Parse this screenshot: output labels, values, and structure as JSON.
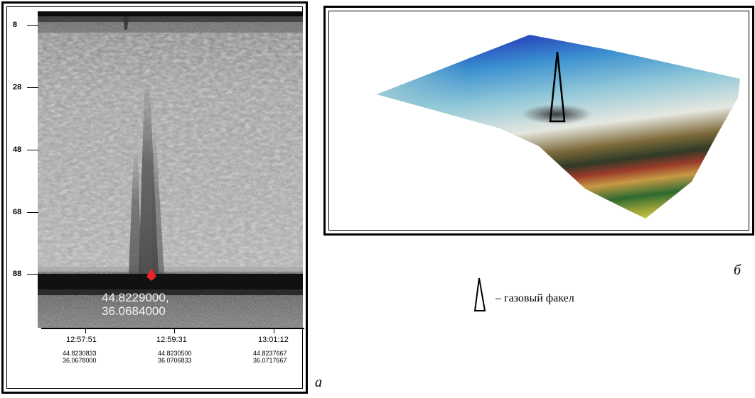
{
  "panel_a": {
    "letter": "a",
    "y_ticks": [
      "8",
      "28",
      "48",
      "68",
      "88"
    ],
    "x_times": [
      "12:57:51",
      "12:59:31",
      "13:01:12"
    ],
    "x_coords": [
      {
        "lat": "44.8230833",
        "lon": "36.0678000"
      },
      {
        "lat": "44.8230500",
        "lon": "36.0706833"
      },
      {
        "lat": "44.8237667",
        "lon": "36.0717667"
      }
    ],
    "point_label_line1": "44.8229000,",
    "point_label_line2": "36.0684000",
    "marker_color": "#e8232a"
  },
  "panel_b": {
    "letter": "б"
  },
  "legend": {
    "icon": "gas-flare-icon",
    "text": "– газовый факел"
  }
}
